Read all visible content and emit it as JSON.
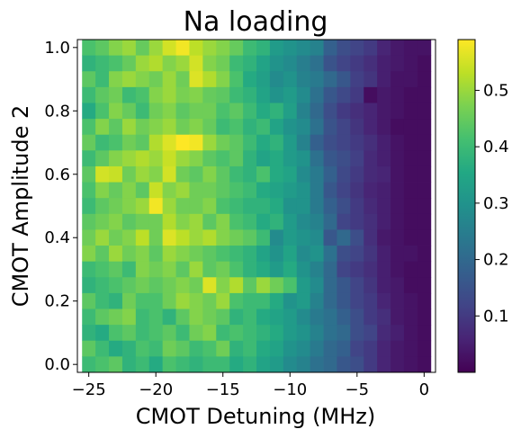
{
  "chart_data": {
    "type": "heatmap",
    "title": "Na loading",
    "xlabel": "CMOT Detuning (MHz)",
    "ylabel": "CMOT Amplitude 2",
    "xlim": [
      -25.85,
      0.85
    ],
    "ylim": [
      -0.025,
      1.025
    ],
    "x_ticks": [
      -25,
      -20,
      -15,
      -10,
      -5,
      0
    ],
    "x_tick_labels": [
      "−25",
      "−20",
      "−15",
      "−10",
      "−5",
      "0"
    ],
    "y_ticks": [
      0.0,
      0.2,
      0.4,
      0.6,
      0.8,
      1.0
    ],
    "y_tick_labels": [
      "0.0",
      "0.2",
      "0.4",
      "0.6",
      "0.8",
      "1.0"
    ],
    "colorbar": {
      "colormap": "viridis",
      "vmin": 0.0,
      "vmax": 0.59,
      "ticks": [
        0.1,
        0.2,
        0.3,
        0.4,
        0.5
      ],
      "tick_labels": [
        "0.1",
        "0.2",
        "0.3",
        "0.4",
        "0.5"
      ]
    },
    "x_centers": [
      -25,
      -24,
      -23,
      -22,
      -21,
      -20,
      -19,
      -18,
      -17,
      -16,
      -15,
      -14,
      -13,
      -12,
      -11,
      -10,
      -9,
      -8,
      -7,
      -6,
      -5,
      -4,
      -3,
      -2,
      -1,
      0
    ],
    "y_centers": [
      0.0,
      0.05,
      0.1,
      0.15,
      0.2,
      0.25,
      0.3,
      0.35,
      0.4,
      0.45,
      0.5,
      0.55,
      0.6,
      0.65,
      0.7,
      0.75,
      0.8,
      0.85,
      0.9,
      0.95,
      1.0
    ],
    "values_rows_top_to_bottom": [
      [
        0.42,
        0.44,
        0.48,
        0.5,
        0.45,
        0.5,
        0.55,
        0.58,
        0.53,
        0.5,
        0.48,
        0.45,
        0.4,
        0.38,
        0.32,
        0.3,
        0.28,
        0.26,
        0.18,
        0.14,
        0.12,
        0.1,
        0.06,
        0.04,
        0.03,
        0.03
      ],
      [
        0.38,
        0.4,
        0.42,
        0.45,
        0.5,
        0.52,
        0.48,
        0.5,
        0.55,
        0.48,
        0.46,
        0.4,
        0.38,
        0.34,
        0.3,
        0.28,
        0.25,
        0.22,
        0.15,
        0.12,
        0.1,
        0.08,
        0.05,
        0.04,
        0.03,
        0.02
      ],
      [
        0.44,
        0.4,
        0.48,
        0.5,
        0.48,
        0.46,
        0.5,
        0.46,
        0.56,
        0.52,
        0.48,
        0.42,
        0.36,
        0.33,
        0.28,
        0.3,
        0.26,
        0.24,
        0.2,
        0.16,
        0.11,
        0.09,
        0.05,
        0.03,
        0.03,
        0.02
      ],
      [
        0.4,
        0.44,
        0.46,
        0.4,
        0.42,
        0.48,
        0.5,
        0.47,
        0.48,
        0.45,
        0.44,
        0.4,
        0.38,
        0.34,
        0.3,
        0.32,
        0.28,
        0.22,
        0.16,
        0.13,
        0.1,
        0.02,
        0.04,
        0.03,
        0.02,
        0.02
      ],
      [
        0.36,
        0.42,
        0.48,
        0.45,
        0.4,
        0.46,
        0.48,
        0.44,
        0.46,
        0.46,
        0.42,
        0.44,
        0.4,
        0.36,
        0.38,
        0.33,
        0.26,
        0.2,
        0.14,
        0.1,
        0.08,
        0.06,
        0.04,
        0.03,
        0.02,
        0.02
      ],
      [
        0.42,
        0.48,
        0.44,
        0.5,
        0.46,
        0.48,
        0.5,
        0.46,
        0.48,
        0.45,
        0.4,
        0.42,
        0.38,
        0.4,
        0.34,
        0.3,
        0.28,
        0.22,
        0.15,
        0.12,
        0.09,
        0.06,
        0.04,
        0.02,
        0.02,
        0.02
      ],
      [
        0.45,
        0.4,
        0.42,
        0.46,
        0.44,
        0.52,
        0.56,
        0.59,
        0.58,
        0.5,
        0.46,
        0.44,
        0.4,
        0.36,
        0.38,
        0.32,
        0.26,
        0.18,
        0.14,
        0.12,
        0.1,
        0.08,
        0.05,
        0.03,
        0.02,
        0.02
      ],
      [
        0.4,
        0.44,
        0.48,
        0.5,
        0.52,
        0.5,
        0.54,
        0.5,
        0.48,
        0.44,
        0.42,
        0.44,
        0.38,
        0.34,
        0.36,
        0.32,
        0.3,
        0.22,
        0.16,
        0.14,
        0.11,
        0.07,
        0.05,
        0.03,
        0.02,
        0.02
      ],
      [
        0.44,
        0.55,
        0.54,
        0.46,
        0.5,
        0.48,
        0.55,
        0.46,
        0.44,
        0.48,
        0.44,
        0.4,
        0.38,
        0.42,
        0.36,
        0.34,
        0.28,
        0.24,
        0.18,
        0.13,
        0.1,
        0.07,
        0.06,
        0.03,
        0.02,
        0.02
      ],
      [
        0.42,
        0.48,
        0.45,
        0.48,
        0.44,
        0.54,
        0.48,
        0.5,
        0.46,
        0.46,
        0.44,
        0.42,
        0.4,
        0.36,
        0.34,
        0.32,
        0.3,
        0.24,
        0.16,
        0.12,
        0.09,
        0.06,
        0.05,
        0.03,
        0.02,
        0.02
      ],
      [
        0.4,
        0.44,
        0.46,
        0.48,
        0.5,
        0.58,
        0.5,
        0.46,
        0.46,
        0.48,
        0.42,
        0.4,
        0.38,
        0.38,
        0.36,
        0.3,
        0.3,
        0.24,
        0.18,
        0.14,
        0.1,
        0.07,
        0.05,
        0.03,
        0.02,
        0.02
      ],
      [
        0.44,
        0.46,
        0.48,
        0.44,
        0.46,
        0.46,
        0.52,
        0.48,
        0.5,
        0.44,
        0.48,
        0.42,
        0.4,
        0.36,
        0.38,
        0.32,
        0.28,
        0.26,
        0.2,
        0.12,
        0.1,
        0.08,
        0.05,
        0.03,
        0.02,
        0.02
      ],
      [
        0.46,
        0.5,
        0.46,
        0.48,
        0.53,
        0.46,
        0.56,
        0.53,
        0.5,
        0.52,
        0.48,
        0.46,
        0.44,
        0.4,
        0.28,
        0.32,
        0.3,
        0.28,
        0.16,
        0.2,
        0.14,
        0.08,
        0.04,
        0.03,
        0.02,
        0.02
      ],
      [
        0.48,
        0.44,
        0.5,
        0.46,
        0.48,
        0.44,
        0.5,
        0.48,
        0.46,
        0.44,
        0.42,
        0.4,
        0.38,
        0.34,
        0.3,
        0.34,
        0.28,
        0.3,
        0.22,
        0.14,
        0.12,
        0.09,
        0.05,
        0.03,
        0.03,
        0.02
      ],
      [
        0.4,
        0.42,
        0.44,
        0.4,
        0.48,
        0.46,
        0.48,
        0.44,
        0.5,
        0.44,
        0.46,
        0.42,
        0.38,
        0.36,
        0.32,
        0.36,
        0.3,
        0.26,
        0.2,
        0.12,
        0.1,
        0.08,
        0.05,
        0.03,
        0.02,
        0.02
      ],
      [
        0.38,
        0.4,
        0.42,
        0.44,
        0.46,
        0.44,
        0.46,
        0.48,
        0.46,
        0.56,
        0.48,
        0.52,
        0.44,
        0.5,
        0.46,
        0.42,
        0.32,
        0.28,
        0.2,
        0.16,
        0.12,
        0.09,
        0.05,
        0.04,
        0.02,
        0.02
      ],
      [
        0.44,
        0.4,
        0.38,
        0.46,
        0.42,
        0.42,
        0.46,
        0.5,
        0.48,
        0.46,
        0.5,
        0.42,
        0.4,
        0.4,
        0.36,
        0.3,
        0.32,
        0.26,
        0.2,
        0.16,
        0.12,
        0.1,
        0.06,
        0.04,
        0.03,
        0.02
      ],
      [
        0.4,
        0.44,
        0.46,
        0.48,
        0.4,
        0.42,
        0.38,
        0.44,
        0.48,
        0.46,
        0.44,
        0.38,
        0.4,
        0.36,
        0.34,
        0.32,
        0.28,
        0.24,
        0.22,
        0.18,
        0.14,
        0.1,
        0.08,
        0.04,
        0.03,
        0.02
      ],
      [
        0.38,
        0.36,
        0.42,
        0.44,
        0.4,
        0.42,
        0.44,
        0.4,
        0.46,
        0.48,
        0.4,
        0.42,
        0.4,
        0.38,
        0.36,
        0.32,
        0.3,
        0.26,
        0.22,
        0.2,
        0.14,
        0.12,
        0.07,
        0.05,
        0.03,
        0.02
      ],
      [
        0.44,
        0.4,
        0.36,
        0.38,
        0.42,
        0.4,
        0.46,
        0.44,
        0.4,
        0.42,
        0.46,
        0.38,
        0.4,
        0.36,
        0.34,
        0.3,
        0.28,
        0.24,
        0.2,
        0.18,
        0.12,
        0.1,
        0.06,
        0.04,
        0.03,
        0.02
      ],
      [
        0.4,
        0.42,
        0.44,
        0.38,
        0.4,
        0.36,
        0.42,
        0.4,
        0.38,
        0.4,
        0.4,
        0.36,
        0.38,
        0.34,
        0.32,
        0.28,
        0.26,
        0.22,
        0.2,
        0.16,
        0.14,
        0.1,
        0.06,
        0.04,
        0.03,
        0.02
      ]
    ]
  }
}
